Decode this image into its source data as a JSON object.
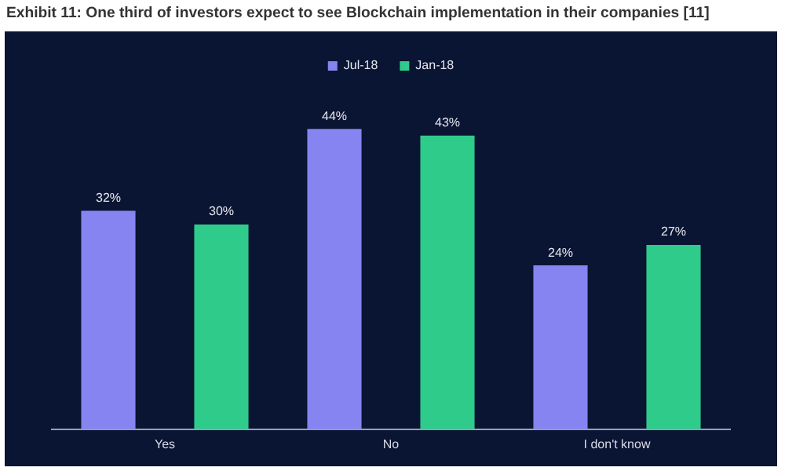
{
  "chart_data": {
    "type": "bar",
    "title": "Exhibit 11: One third of investors expect to see Blockchain implementation in their companies [11]",
    "categories": [
      "Yes",
      "No",
      "I don't know"
    ],
    "series": [
      {
        "name": "Jul-18",
        "color": "#8684f0",
        "values": [
          32,
          44,
          24
        ],
        "value_labels": [
          "32%",
          "44%",
          "24%"
        ]
      },
      {
        "name": "Jan-18",
        "color": "#2fcb8b",
        "values": [
          30,
          43,
          27
        ],
        "value_labels": [
          "30%",
          "43%",
          "27%"
        ]
      }
    ],
    "grid": false,
    "legend": "top"
  }
}
